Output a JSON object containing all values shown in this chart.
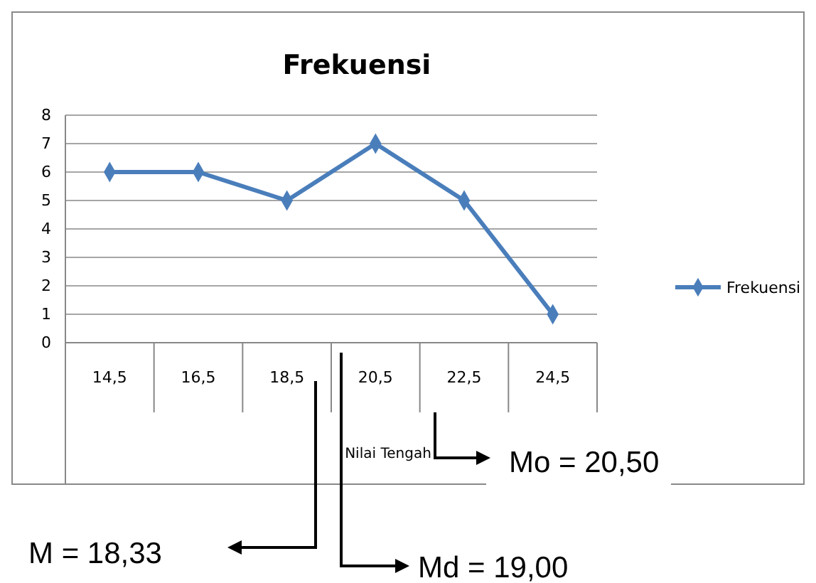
{
  "chart_data": {
    "type": "line",
    "title": "Frekuensi",
    "xlabel": "Nilai Tengah",
    "categories": [
      "14,5",
      "16,5",
      "18,5",
      "20,5",
      "22,5",
      "24,5"
    ],
    "series": [
      {
        "name": "Frekuensi",
        "color": "#4a7ebb",
        "values": [
          6,
          6,
          5,
          7,
          5,
          1
        ]
      }
    ],
    "ylim": [
      0,
      8
    ],
    "yticks": [
      0,
      1,
      2,
      3,
      4,
      5,
      6,
      7,
      8
    ],
    "grid": "y",
    "legend": "right",
    "marker": "diamond",
    "line_style": "solid",
    "annotations": [
      "Mo = 20,50",
      "M = 18,33",
      "Md = 19,00"
    ]
  }
}
